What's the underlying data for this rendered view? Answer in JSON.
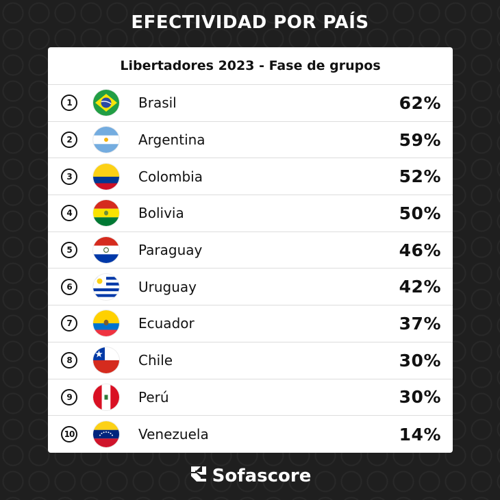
{
  "title": "EFECTIVIDAD POR PAÍS",
  "table": {
    "header": "Libertadores 2023 - Fase de grupos",
    "rows": [
      {
        "rank": "1",
        "country": "Brasil",
        "value": "62%",
        "flag": "brazil-flag-icon"
      },
      {
        "rank": "2",
        "country": "Argentina",
        "value": "59%",
        "flag": "argentina-flag-icon"
      },
      {
        "rank": "3",
        "country": "Colombia",
        "value": "52%",
        "flag": "colombia-flag-icon"
      },
      {
        "rank": "4",
        "country": "Bolivia",
        "value": "50%",
        "flag": "bolivia-flag-icon"
      },
      {
        "rank": "5",
        "country": "Paraguay",
        "value": "46%",
        "flag": "paraguay-flag-icon"
      },
      {
        "rank": "6",
        "country": "Uruguay",
        "value": "42%",
        "flag": "uruguay-flag-icon"
      },
      {
        "rank": "7",
        "country": "Ecuador",
        "value": "37%",
        "flag": "ecuador-flag-icon"
      },
      {
        "rank": "8",
        "country": "Chile",
        "value": "30%",
        "flag": "chile-flag-icon"
      },
      {
        "rank": "9",
        "country": "Perú",
        "value": "30%",
        "flag": "peru-flag-icon"
      },
      {
        "rank": "10",
        "country": "Venezuela",
        "value": "14%",
        "flag": "venezuela-flag-icon"
      }
    ]
  },
  "brand": {
    "name": "Sofascore",
    "icon": "sofascore-logo-icon"
  },
  "colors": {
    "background": "#1f1f1f",
    "card": "#ffffff",
    "text": "#111111"
  }
}
